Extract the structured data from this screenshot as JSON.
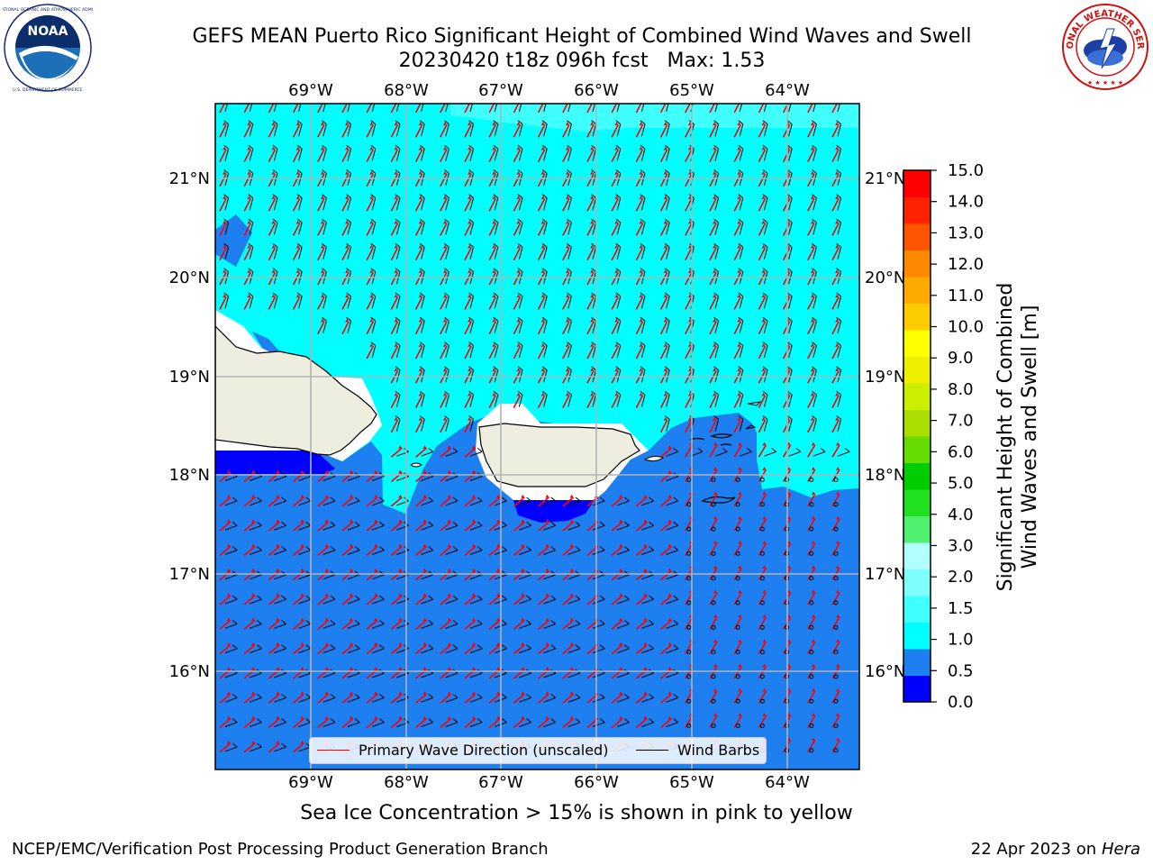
{
  "header": {
    "title_line1": "GEFS MEAN Puerto Rico Significant Height of Combined Wind Waves and Swell",
    "title_line2": "20230420 t18z 096h fcst   Max: 1.53"
  },
  "logos": {
    "left": {
      "name": "NOAA",
      "ring_text": "NATIONAL OCEANIC AND ATMOSPHERIC ADMINISTRATION",
      "bottom_text": "U.S. DEPARTMENT OF COMMERCE"
    },
    "right": {
      "name": "NATIONAL WEATHER SERVICE"
    }
  },
  "map": {
    "lon_labels": [
      "69°W",
      "68°W",
      "67°W",
      "66°W",
      "65°W",
      "64°W"
    ],
    "lat_labels": [
      "21°N",
      "20°N",
      "19°N",
      "18°N",
      "17°N",
      "16°N"
    ],
    "legend": {
      "wave_label": "Primary Wave Direction (unscaled)",
      "barb_label": "Wind Barbs",
      "wave_color": "#ff0000",
      "barb_color": "#000000"
    }
  },
  "colorbar": {
    "label_line1": "Significant Height of Combined",
    "label_line2": "Wind Waves and Swell [m]",
    "ticks": [
      "15.0",
      "14.0",
      "13.0",
      "12.0",
      "11.0",
      "10.0",
      "9.0",
      "8.0",
      "7.0",
      "6.0",
      "5.0",
      "4.0",
      "3.0",
      "2.0",
      "1.5",
      "1.0",
      "0.5",
      "0.0"
    ],
    "colors_bottom_to_top": [
      "#0000ff",
      "#1e7ff0",
      "#00ffff",
      "#40ffff",
      "#80ffff",
      "#b2ffff",
      "#50f070",
      "#20e020",
      "#00cc00",
      "#66dd00",
      "#aadd00",
      "#ccee00",
      "#eeee00",
      "#ffff00",
      "#ffcc00",
      "#ffaa00",
      "#ff8800",
      "#ff5500",
      "#ff2200",
      "#ff0000"
    ]
  },
  "footer": {
    "sea_ice_note": "Sea Ice Concentration > 15% is shown in pink to yellow",
    "left": "NCEP/EMC/Verification Post Processing Product Generation Branch",
    "right_date": "22 Apr 2023 on ",
    "right_host": "Hera"
  }
}
